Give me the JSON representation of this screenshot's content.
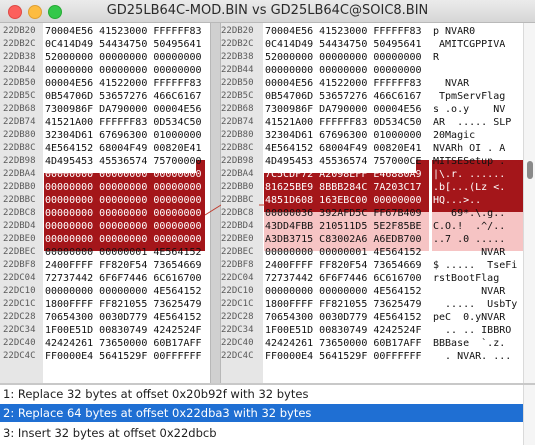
{
  "window": {
    "title": "GD25LB64C-MOD.BIN vs GD25LB64C@SOIC8.BIN"
  },
  "colors": {
    "selection": "#1f6fd3",
    "diff_dark": "#a4161a",
    "diff_light": "#f6c4c4"
  },
  "rows": [
    {
      "a1": "22DB20",
      "h1": "70004E56 41523000 FFFFFF83",
      "a2": "22DB20",
      "h2": "70004E56 41523000 FFFFFF83",
      "asc": "p NVAR0 "
    },
    {
      "a1": "22DB2C",
      "h1": "0C414D49 54434750 50495641",
      "a2": "22DB2C",
      "h2": "0C414D49 54434750 50495641",
      "asc": " AMITCGPPIVA"
    },
    {
      "a1": "22DB38",
      "h1": "52000000 00000000 00000000",
      "a2": "22DB38",
      "h2": "52000000 00000000 00000000",
      "asc": "R"
    },
    {
      "a1": "22DB44",
      "h1": "00000000 00000000 00000000",
      "a2": "22DB44",
      "h2": "00000000 00000000 00000000",
      "asc": ""
    },
    {
      "a1": "22DB50",
      "h1": "00004E56 41522000 FFFFFF83",
      "a2": "22DB50",
      "h2": "00004E56 41522000 FFFFFF83",
      "asc": "  NVAR     "
    },
    {
      "a1": "22DB5C",
      "h1": "0B54706D 53657276 466C6167",
      "a2": "22DB5C",
      "h2": "0B54706D 53657276 466C6167",
      "asc": " TpmServFlag"
    },
    {
      "a1": "22DB68",
      "h1": "7300986F DA790000 00004E56",
      "a2": "22DB68",
      "h2": "7300986F DA790000 00004E56",
      "asc": "s .o.y    NV"
    },
    {
      "a1": "22DB74",
      "h1": "41521A00 FFFFFF83 0D534C50",
      "a2": "22DB74",
      "h2": "41521A00 FFFFFF83 0D534C50",
      "asc": "AR  ..... SLP"
    },
    {
      "a1": "22DB80",
      "h1": "32304D61 67696300 01000000",
      "a2": "22DB80",
      "h2": "32304D61 67696300 01000000",
      "asc": "20Magic"
    },
    {
      "a1": "22DB8C",
      "h1": "4E564152 68004F49 00820E41",
      "a2": "22DB8C",
      "h2": "4E564152 68004F49 00820E41",
      "asc": "NVARh OI . A"
    },
    {
      "a1": "22DB98",
      "h1": "4D495453 45536574 75700000",
      "a2": "22DB98",
      "h2": "4D495453 45536574 757000CE",
      "asc": "MITSESetup ."
    },
    {
      "a1": "22DBA4",
      "h1": "00000000 00000000 00000000",
      "a2": "22DBA4",
      "h2": "7C5CDF72 A2098EFF E46880A9",
      "asc": "|\\.r. ......"
    },
    {
      "a1": "22DBB0",
      "h1": "00000000 00000000 00000000",
      "a2": "22DBB0",
      "h2": "81625BE9 8BBB284C 7A203C17",
      "asc": ".b[...(Lz <."
    },
    {
      "a1": "22DBBC",
      "h1": "00000000 00000000 00000000",
      "a2": "22DBBC",
      "h2": "4851D608 163EBC00 00000000",
      "asc": "HQ...>.."
    },
    {
      "a1": "22DBC8",
      "h1": "00000000 00000000 00000000",
      "a2": "22DBC8",
      "h2": "00000036 392AFD5C FF67B409",
      "asc": "   69*.\\.g.."
    },
    {
      "a1": "22DBD4",
      "h1": "00000000 00000000 00000000",
      "a2": "22DBD4",
      "h2": "43DD4FBB 210511D5 5E2F85BE",
      "asc": "C.O.!  .^/.."
    },
    {
      "a1": "22DBE0",
      "h1": "00000000 00000000 00000000",
      "a2": "22DBE0",
      "h2": "A3DB3715 C83002A6 A6EDB700",
      "asc": "..7 .0 ....."
    },
    {
      "a1": "22DBEC",
      "h1": "00000000 00000001 4E564152",
      "a2": "22DBEC",
      "h2": "00000000 00000001 4E564152",
      "asc": "        NVAR"
    },
    {
      "a1": "22DBF8",
      "h1": "2400FFFF FF820F54 73654669",
      "a2": "22DBF8",
      "h2": "2400FFFF FF820F54 73654669",
      "asc": "$ .....  TseFi"
    },
    {
      "a1": "22DC04",
      "h1": "72737442 6F6F7446 6C616700",
      "a2": "22DC04",
      "h2": "72737442 6F6F7446 6C616700",
      "asc": "rstBootFlag"
    },
    {
      "a1": "22DC10",
      "h1": "00000000 00000000 4E564152",
      "a2": "22DC10",
      "h2": "00000000 00000000 4E564152",
      "asc": "        NVAR"
    },
    {
      "a1": "22DC1C",
      "h1": "1800FFFF FF821055 73625479",
      "a2": "22DC1C",
      "h2": "1800FFFF FF821055 73625479",
      "asc": "  .....  UsbTy"
    },
    {
      "a1": "22DC28",
      "h1": "70654300 0030D779 4E564152",
      "a2": "22DC28",
      "h2": "70654300 0030D779 4E564152",
      "asc": "peC  0.yNVAR"
    },
    {
      "a1": "22DC34",
      "h1": "1F00E51D 00830749 4242524F",
      "a2": "22DC34",
      "h2": "1F00E51D 00830749 4242524F",
      "asc": "  .. .. IBBRO"
    },
    {
      "a1": "22DC40",
      "h1": "42424261 73650000 60B17AFF",
      "a2": "22DC40",
      "h2": "42424261 73650000 60B17AFF",
      "asc": "BBBase  `.z."
    },
    {
      "a1": "22DC4C",
      "h1": "FF0000E4 5641529F 00FFFFFF",
      "a2": "22DC4C",
      "h2": "FF0000E4 5641529F 00FFFFFF",
      "asc": "  . NVAR. ..."
    }
  ],
  "differences": [
    {
      "label": "1: Replace 32 bytes at offset 0x20b92f with 32 bytes"
    },
    {
      "label": "2: Replace 64 bytes at offset 0x22dba3 with 32 bytes"
    },
    {
      "label": "3: Insert 32 bytes at offset 0x22dbcb"
    }
  ],
  "selected_difference": 2
}
